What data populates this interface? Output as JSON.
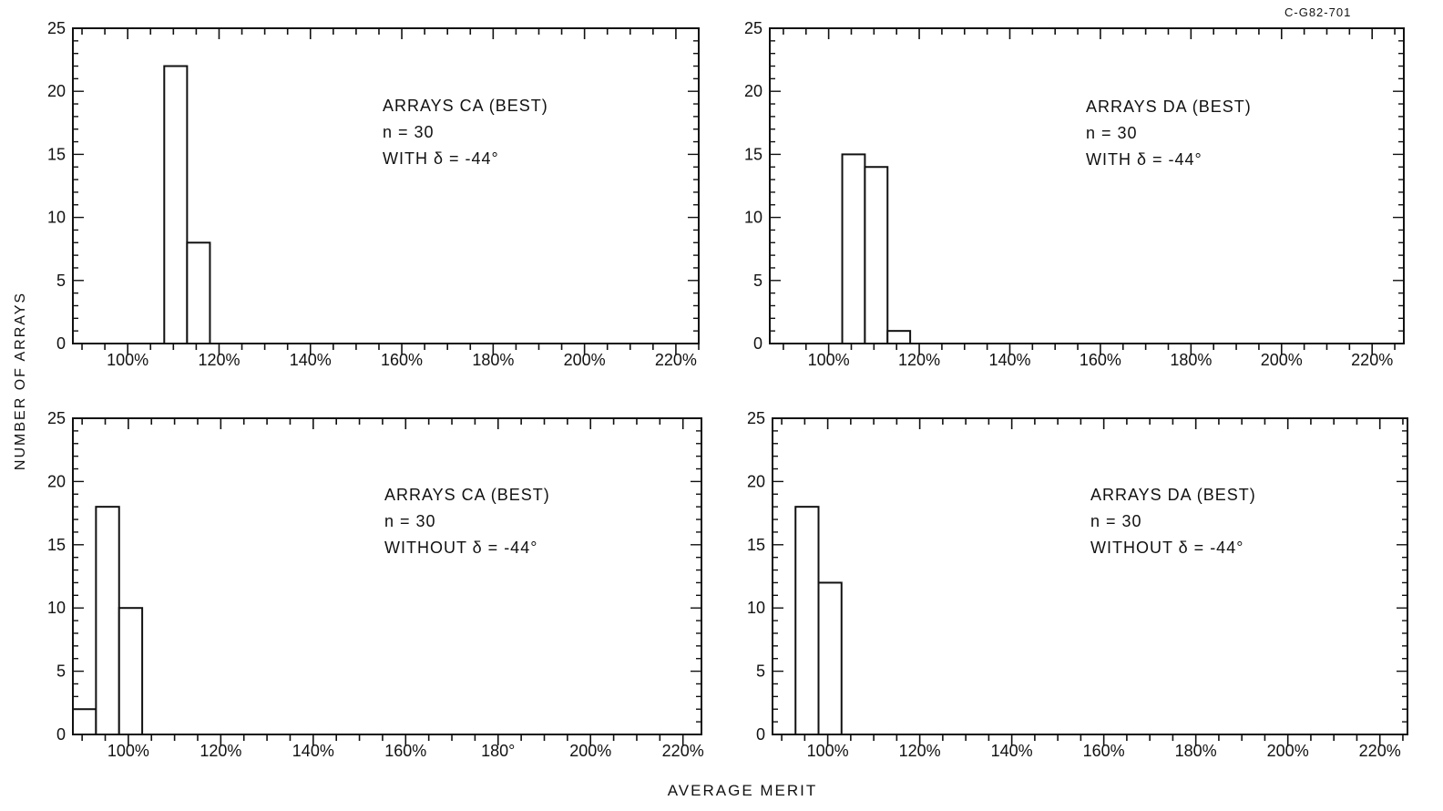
{
  "figure": {
    "ref_code": "C-G82-701",
    "ylabel": "NUMBER OF ARRAYS",
    "xlabel": "AVERAGE MERIT"
  },
  "chart_data": [
    {
      "type": "bar",
      "panel": "top-left",
      "annotation": [
        "ARRAYS CA (BEST)",
        "n = 30",
        "WITH δ = -44°"
      ],
      "x_tick_labels": [
        "100%",
        "120%",
        "140%",
        "160%",
        "180%",
        "200%",
        "220%"
      ],
      "y_tick_labels": [
        "0",
        "5",
        "10",
        "15",
        "20",
        "25"
      ],
      "xlim": [
        88,
        225
      ],
      "ylim": [
        0,
        25
      ],
      "bin_width": 5,
      "bins": [
        {
          "start": 108,
          "count": 22
        },
        {
          "start": 113,
          "count": 8
        }
      ]
    },
    {
      "type": "bar",
      "panel": "top-right",
      "annotation": [
        "ARRAYS DA (BEST)",
        "n = 30",
        "WITH δ = -44°"
      ],
      "x_tick_labels": [
        "100%",
        "120%",
        "140%",
        "160%",
        "180%",
        "200%",
        "220%"
      ],
      "y_tick_labels": [
        "0",
        "5",
        "10",
        "15",
        "20",
        "25"
      ],
      "xlim": [
        87,
        227
      ],
      "ylim": [
        0,
        25
      ],
      "bin_width": 5,
      "bins": [
        {
          "start": 103,
          "count": 15
        },
        {
          "start": 108,
          "count": 14
        },
        {
          "start": 113,
          "count": 1
        }
      ]
    },
    {
      "type": "bar",
      "panel": "bottom-left",
      "annotation": [
        "ARRAYS CA (BEST)",
        "n = 30",
        "WITHOUT δ = -44°"
      ],
      "x_tick_labels": [
        "100%",
        "120%",
        "140%",
        "160%",
        "180°",
        "200%",
        "220%"
      ],
      "y_tick_labels": [
        "0",
        "5",
        "10",
        "15",
        "20",
        "25"
      ],
      "xlim": [
        88,
        224
      ],
      "ylim": [
        0,
        25
      ],
      "bin_width": 5,
      "bins": [
        {
          "start": 88,
          "count": 2
        },
        {
          "start": 93,
          "count": 18
        },
        {
          "start": 98,
          "count": 10
        }
      ]
    },
    {
      "type": "bar",
      "panel": "bottom-right",
      "annotation": [
        "ARRAYS DA (BEST)",
        "n = 30",
        "WITHOUT δ = -44°"
      ],
      "x_tick_labels": [
        "100%",
        "120%",
        "140%",
        "160%",
        "180%",
        "200%",
        "220%"
      ],
      "y_tick_labels": [
        "0",
        "5",
        "10",
        "15",
        "20",
        "25"
      ],
      "xlim": [
        88,
        226
      ],
      "ylim": [
        0,
        25
      ],
      "bin_width": 5,
      "bins": [
        {
          "start": 93,
          "count": 18
        },
        {
          "start": 98,
          "count": 12
        }
      ]
    }
  ]
}
